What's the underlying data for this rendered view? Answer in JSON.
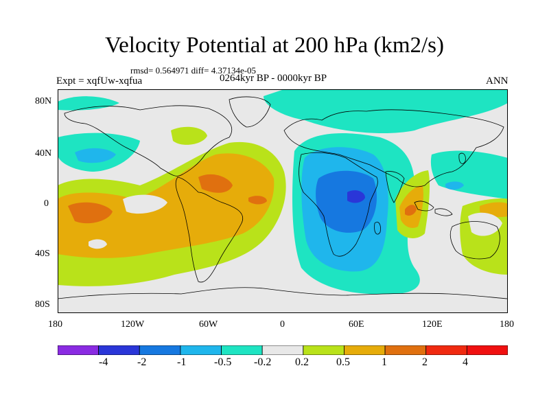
{
  "title": "Velocity Potential at 200 hPa (km2/s)",
  "stats": "rmsd= 0.564971 diff= 4.37134e-05",
  "period": "0264kyr BP - 0000kyr BP",
  "experiment": "Expt = xqfUw-xqfua",
  "season": "ANN",
  "lat_labels": [
    "80N",
    "40N",
    "0",
    "40S",
    "80S"
  ],
  "lon_labels": [
    "180",
    "120W",
    "60W",
    "0",
    "60E",
    "120E",
    "180"
  ],
  "colorbar": {
    "labels": [
      "-4",
      "-2",
      "-1",
      "-0.5",
      "-0.2",
      "0.2",
      "0.5",
      "1",
      "2",
      "4"
    ],
    "colors": [
      "#8a2be2",
      "#2a36d8",
      "#1678e0",
      "#1fb6ec",
      "#1ee4c2",
      "#e8e8e8",
      "#b9e21a",
      "#e6ac0a",
      "#e0700f",
      "#f02a10",
      "#f01010"
    ]
  },
  "colors": {
    "land_outline": "#000000",
    "background": "#e8e8e8"
  }
}
